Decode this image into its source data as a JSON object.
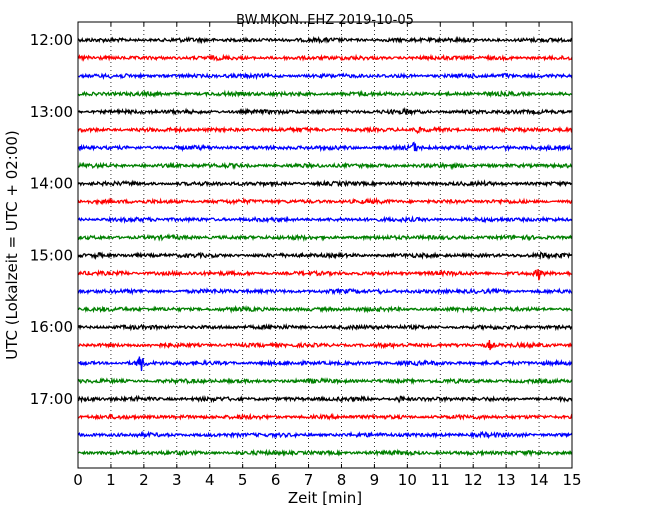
{
  "chart_data": {
    "type": "line",
    "title": "BW.MKON..EHZ 2019-10-05",
    "xlabel": "Zeit  [min]",
    "ylabel": "UTC (Lokalzeit = UTC + 02:00)",
    "xlim": [
      0,
      15
    ],
    "x_ticks": [
      "0",
      "1",
      "2",
      "3",
      "4",
      "5",
      "6",
      "7",
      "8",
      "9",
      "10",
      "11",
      "12",
      "13",
      "14",
      "15"
    ],
    "y_ticks": [
      {
        "label": "12:00",
        "row": 0
      },
      {
        "label": "13:00",
        "row": 4
      },
      {
        "label": "14:00",
        "row": 8
      },
      {
        "label": "15:00",
        "row": 12
      },
      {
        "label": "16:00",
        "row": 16
      },
      {
        "label": "17:00",
        "row": 20
      }
    ],
    "grid": "x-dotted",
    "colors": [
      "#000000",
      "#ff0000",
      "#0000ff",
      "#008000"
    ],
    "rows": [
      {
        "start": "12:00",
        "color": "#000000",
        "events": []
      },
      {
        "start": "12:15",
        "color": "#ff0000",
        "events": []
      },
      {
        "start": "12:30",
        "color": "#0000ff",
        "events": [
          {
            "minute": 13.0,
            "amp": 3
          }
        ]
      },
      {
        "start": "12:45",
        "color": "#008000",
        "events": []
      },
      {
        "start": "13:00",
        "color": "#000000",
        "events": [
          {
            "minute": 10.0,
            "amp": 2
          }
        ]
      },
      {
        "start": "13:15",
        "color": "#ff0000",
        "events": [
          {
            "minute": 10.3,
            "amp": 2
          }
        ]
      },
      {
        "start": "13:30",
        "color": "#0000ff",
        "events": [
          {
            "minute": 10.2,
            "amp": 5
          },
          {
            "minute": 13.0,
            "amp": 2
          }
        ]
      },
      {
        "start": "13:45",
        "color": "#008000",
        "events": []
      },
      {
        "start": "14:00",
        "color": "#000000",
        "events": []
      },
      {
        "start": "14:15",
        "color": "#ff0000",
        "events": []
      },
      {
        "start": "14:30",
        "color": "#0000ff",
        "events": []
      },
      {
        "start": "14:45",
        "color": "#008000",
        "events": []
      },
      {
        "start": "15:00",
        "color": "#000000",
        "events": [
          {
            "minute": 0.6,
            "amp": 3
          },
          {
            "minute": 14.1,
            "amp": 2
          }
        ]
      },
      {
        "start": "15:15",
        "color": "#ff0000",
        "events": [
          {
            "minute": 14.0,
            "amp": 6
          },
          {
            "minute": 1.4,
            "amp": 2
          }
        ]
      },
      {
        "start": "15:30",
        "color": "#0000ff",
        "events": [
          {
            "minute": 9.2,
            "amp": 2
          }
        ]
      },
      {
        "start": "15:45",
        "color": "#008000",
        "events": []
      },
      {
        "start": "16:00",
        "color": "#000000",
        "events": []
      },
      {
        "start": "16:15",
        "color": "#ff0000",
        "events": [
          {
            "minute": 12.5,
            "amp": 5
          }
        ]
      },
      {
        "start": "16:30",
        "color": "#0000ff",
        "events": [
          {
            "minute": 1.9,
            "amp": 10
          }
        ]
      },
      {
        "start": "16:45",
        "color": "#008000",
        "events": []
      },
      {
        "start": "17:00",
        "color": "#000000",
        "events": [
          {
            "minute": 9.8,
            "amp": 4
          },
          {
            "minute": 1.8,
            "amp": 2
          }
        ]
      },
      {
        "start": "17:15",
        "color": "#ff0000",
        "events": []
      },
      {
        "start": "17:30",
        "color": "#0000ff",
        "events": [
          {
            "minute": 12.3,
            "amp": 2
          }
        ]
      },
      {
        "start": "17:45",
        "color": "#008000",
        "events": []
      }
    ]
  }
}
